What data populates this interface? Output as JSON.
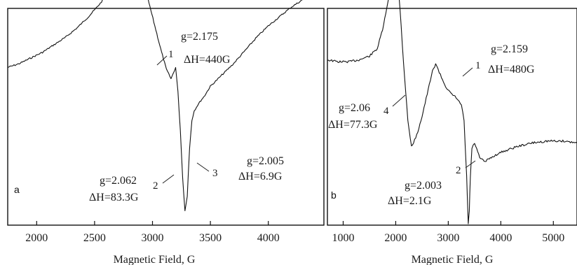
{
  "chart_data": [
    {
      "type": "line",
      "panel_label": "a",
      "xlabel": "Magnetic Field, G",
      "xlim": [
        1750,
        4480
      ],
      "x_ticks": [
        2000,
        2500,
        3000,
        3500,
        4000
      ],
      "y_ticks_shown": false,
      "grid": false,
      "series": [
        {
          "x": [
            1750,
            1850,
            1950,
            2050,
            2150,
            2250,
            2350,
            2450,
            2550,
            2650,
            2720,
            2780,
            2820,
            2850,
            2880,
            2920,
            2970,
            3020,
            3070,
            3120,
            3160,
            3200,
            3220,
            3240,
            3260,
            3280,
            3300,
            3320,
            3340,
            3360,
            3400,
            3450,
            3500,
            3600,
            3700,
            3800,
            3900,
            4000,
            4100,
            4200,
            4300,
            4400,
            4480
          ],
          "y": [
            0.28,
            0.3,
            0.33,
            0.36,
            0.4,
            0.44,
            0.49,
            0.55,
            0.62,
            0.7,
            0.78,
            0.84,
            0.87,
            0.86,
            0.82,
            0.74,
            0.62,
            0.5,
            0.38,
            0.27,
            0.22,
            0.28,
            0.15,
            -0.05,
            -0.3,
            -0.48,
            -0.4,
            -0.15,
            0.0,
            0.05,
            0.09,
            0.13,
            0.18,
            0.24,
            0.3,
            0.37,
            0.44,
            0.5,
            0.55,
            0.6,
            0.64,
            0.67,
            0.68
          ]
        }
      ],
      "annotations": [
        {
          "marker": "1",
          "lines": [
            "g=2.175",
            "ΔH=440G"
          ]
        },
        {
          "marker": "2",
          "lines": [
            "g=2.062",
            "ΔH=83.3G"
          ]
        },
        {
          "marker": "3",
          "lines": [
            "g=2.005",
            "ΔH=6.9G"
          ]
        }
      ]
    },
    {
      "type": "line",
      "panel_label": "b",
      "xlabel": "Magnetic Field, G",
      "xlim": [
        700,
        5450
      ],
      "x_ticks": [
        1000,
        2000,
        3000,
        4000,
        5000
      ],
      "y_ticks_shown": false,
      "grid": false,
      "series": [
        {
          "x": [
            700,
            900,
            1100,
            1300,
            1500,
            1650,
            1750,
            1850,
            1920,
            1980,
            2020,
            2080,
            2150,
            2230,
            2300,
            2400,
            2500,
            2600,
            2700,
            2760,
            2850,
            2950,
            3050,
            3150,
            3250,
            3300,
            3350,
            3380,
            3400,
            3420,
            3450,
            3500,
            3600,
            3700,
            3800,
            4000,
            4300,
            4600,
            4900,
            5200,
            5450
          ],
          "y": [
            0.32,
            0.31,
            0.31,
            0.32,
            0.34,
            0.38,
            0.48,
            0.62,
            0.74,
            0.82,
            0.8,
            0.6,
            0.3,
            0.0,
            -0.14,
            -0.08,
            0.02,
            0.14,
            0.26,
            0.3,
            0.24,
            0.18,
            0.14,
            0.12,
            0.08,
            0.0,
            -0.3,
            -0.55,
            -0.48,
            -0.3,
            -0.15,
            -0.12,
            -0.2,
            -0.22,
            -0.2,
            -0.17,
            -0.14,
            -0.12,
            -0.11,
            -0.11,
            -0.12
          ]
        }
      ],
      "annotations": [
        {
          "marker": "1",
          "lines": [
            "g=2.159",
            "ΔH=480G"
          ]
        },
        {
          "marker": "4",
          "lines": [
            "g=2.06",
            "ΔH=77.3G"
          ]
        },
        {
          "marker": "2",
          "lines": [
            "g=2.003",
            "ΔH=2.1G"
          ]
        }
      ]
    }
  ]
}
